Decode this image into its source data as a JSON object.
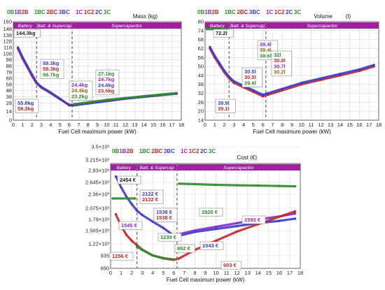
{
  "chart_data": [
    {
      "type": "line",
      "title": "Mass (kg)",
      "xlabel": "Fuel Cell maximum power (kW)",
      "ylabel": "",
      "xlim": [
        0,
        18
      ],
      "ylim": [
        0,
        160
      ],
      "xticks": [
        "0",
        "1",
        "2",
        "3",
        "4",
        "5",
        "6",
        "7",
        "8",
        "9",
        "10",
        "11",
        "12",
        "13",
        "14",
        "15",
        "16",
        "17",
        "18"
      ],
      "yticks": [
        "0",
        "14",
        "28",
        "38",
        "48",
        "58",
        "68",
        "78",
        "88",
        "98",
        "108",
        "118",
        "128",
        "138",
        "148",
        "160"
      ],
      "yticks_num": [
        0,
        14,
        28,
        38,
        48,
        58,
        68,
        78,
        88,
        98,
        108,
        118,
        128,
        138,
        148,
        160
      ],
      "zones": [
        "Battery",
        "Batt. & Supercap",
        "Supercapacitor"
      ],
      "legend": [
        {
          "text": "0B",
          "color": "#2e8b2e"
        },
        {
          "text": "1B",
          "color": "#7b2fd0"
        },
        {
          "text": "2B",
          "color": "#c62828"
        },
        {
          "text": "1BC",
          "color": "#2e8b2e"
        },
        {
          "text": "2BC",
          "color": "#c62828"
        },
        {
          "text": "3BC",
          "color": "#3b3bcc"
        },
        {
          "text": "1C",
          "color": "#b020b0"
        },
        {
          "text": "1C2",
          "color": "#c62828"
        },
        {
          "text": "2C",
          "color": "#3b3bcc"
        },
        {
          "text": "3C",
          "color": "#2e8b2e"
        }
      ],
      "series": [
        {
          "color": "#c62828",
          "x": [
            0.5,
            1,
            1.5,
            2,
            2.5,
            3,
            4,
            5,
            6,
            6.5,
            8,
            10,
            12,
            14,
            16,
            17.5
          ],
          "y": [
            116,
            100,
            86,
            72,
            60,
            53,
            44,
            34,
            25,
            25,
            28,
            31,
            35,
            38,
            41,
            44
          ]
        },
        {
          "color": "#3b3bcc",
          "x": [
            0.5,
            1,
            1.5,
            2,
            2.5,
            3,
            4,
            5,
            6,
            6.5,
            8,
            10,
            12,
            14,
            16,
            17.5
          ],
          "y": [
            118,
            102,
            88,
            74,
            61,
            54,
            45,
            35,
            24,
            24,
            27,
            31,
            35,
            38,
            41,
            43
          ]
        },
        {
          "color": "#2e8b2e",
          "x": [
            6.5,
            8,
            10,
            12,
            14,
            16,
            17.5
          ],
          "y": [
            26,
            29,
            33,
            36,
            39,
            42,
            44
          ]
        },
        {
          "color": "#2e8b2e",
          "x": [
            0.2,
            2.3
          ],
          "y": [
            145,
            145
          ]
        }
      ],
      "annotations": [
        {
          "lines": [
            "144.3kg"
          ],
          "colors": [
            "#1a1a1a"
          ]
        },
        {
          "lines": [
            "58.3kg",
            "58.3kg",
            "56.7kg"
          ],
          "colors": [
            "#3b3bcc",
            "#c62828",
            "#2e8b2e"
          ]
        },
        {
          "lines": [
            "55.8kg",
            "58.2kg"
          ],
          "colors": [
            "#3b3bcc",
            "#c62828"
          ]
        },
        {
          "lines": [
            "24.4kg",
            "24.4kg",
            "23.2kg"
          ],
          "colors": [
            "#7b2fd0",
            "#8b6508",
            "#2e8b2e"
          ]
        },
        {
          "lines": [
            "27.1kg",
            "24.7kg",
            "24.6kg",
            "23.5kg"
          ],
          "colors": [
            "#2e8b2e",
            "#b020b0",
            "#3b3bcc",
            "#c62828"
          ]
        }
      ]
    },
    {
      "type": "line",
      "title": "Volume",
      "units": "(l)",
      "xlabel": "Fuel Cell maximum power (kW)",
      "ylabel": "",
      "xlim": [
        0,
        18
      ],
      "ylim": [
        14,
        80
      ],
      "xticks": [
        "0",
        "1",
        "2",
        "3",
        "4",
        "5",
        "6",
        "7",
        "8",
        "9",
        "10",
        "11",
        "12",
        "13",
        "14",
        "15",
        "16",
        "17",
        "18"
      ],
      "yticks": [
        "14",
        "20",
        "26",
        "32",
        "38",
        "44",
        "50",
        "56",
        "62",
        "68",
        "74",
        "80"
      ],
      "yticks_num": [
        14,
        20,
        26,
        32,
        38,
        44,
        50,
        56,
        62,
        68,
        74,
        80
      ],
      "zones": [
        "Battery",
        "Batt. & Supercap",
        "Supercapacitor"
      ],
      "legend": [
        {
          "text": "0B",
          "color": "#2e8b2e"
        },
        {
          "text": "1B",
          "color": "#7b2fd0"
        },
        {
          "text": "2B",
          "color": "#c62828"
        },
        {
          "text": "1BC",
          "color": "#2e8b2e"
        },
        {
          "text": "2BC",
          "color": "#c62828"
        },
        {
          "text": "3BC",
          "color": "#3b3bcc"
        },
        {
          "text": "1C",
          "color": "#b020b0"
        },
        {
          "text": "1C2",
          "color": "#c62828"
        },
        {
          "text": "2C",
          "color": "#3b3bcc"
        },
        {
          "text": "3C",
          "color": "#2e8b2e"
        }
      ],
      "series": [
        {
          "color": "#c62828",
          "x": [
            0.5,
            1,
            1.5,
            2,
            2.5,
            3,
            4,
            5,
            6,
            6.5,
            8,
            10,
            12,
            14,
            16,
            17.5
          ],
          "y": [
            62,
            56,
            51,
            46,
            42,
            39,
            36,
            33,
            30,
            31,
            34,
            38,
            41,
            44,
            47,
            50
          ]
        },
        {
          "color": "#3b3bcc",
          "x": [
            0.5,
            1,
            1.5,
            2,
            2.5,
            3,
            4,
            5,
            6,
            6.5,
            8,
            10,
            12,
            14,
            16,
            17.5
          ],
          "y": [
            63,
            57,
            52,
            47,
            43,
            40,
            37,
            34,
            31,
            32,
            35,
            39,
            42,
            45,
            48,
            51
          ]
        },
        {
          "color": "#2e8b2e",
          "x": [
            0.2,
            2.3
          ],
          "y": [
            75,
            75
          ]
        }
      ],
      "annotations": [
        {
          "lines": [
            "72.2l"
          ],
          "colors": [
            "#1a1a1a"
          ]
        },
        {
          "lines": [
            "39.4l",
            "39.4l",
            "38.6l"
          ],
          "colors": [
            "#7b2fd0",
            "#8b6508",
            "#2e8b2e"
          ]
        },
        {
          "lines": [
            "39.9l",
            "39.1l"
          ],
          "colors": [
            "#3b3bcc",
            "#c62828"
          ]
        },
        {
          "lines": [
            "30.5l",
            "30.5l",
            "29.9l"
          ],
          "colors": [
            "#3b3bcc",
            "#c62828",
            "#2e8b2e"
          ]
        },
        {
          "lines": [
            "32l",
            "30.8l",
            "30.7l",
            "30.2l"
          ],
          "colors": [
            "#2e8b2e",
            "#c62828",
            "#7b2fd0",
            "#8b6508"
          ]
        }
      ]
    },
    {
      "type": "line",
      "title": "Cost (€)",
      "xlabel": "Fuel Cell maximum power (kW)",
      "ylabel": "",
      "xlim": [
        0,
        18
      ],
      "ylim": [
        650,
        3500
      ],
      "xticks": [
        "0",
        "1",
        "2",
        "3",
        "4",
        "5",
        "6",
        "7",
        "8",
        "9",
        "10",
        "11",
        "12",
        "13",
        "14",
        "15",
        "16",
        "17",
        "18"
      ],
      "yticks": [
        "650",
        "935",
        "1.22×10³",
        "1.505×10³",
        "1.79×10³",
        "2.075×10³",
        "2.36×10³",
        "2.645×10³",
        "2.93×10³",
        "3.215×10³",
        "3.5×10³"
      ],
      "yticks_num": [
        650,
        935,
        1220,
        1505,
        1790,
        2075,
        2360,
        2645,
        2930,
        3215,
        3500
      ],
      "zones": [
        "Battery",
        "Batt. & Supercap",
        "Supercapacitor"
      ],
      "legend": [
        {
          "text": "0B",
          "color": "#2e8b2e"
        },
        {
          "text": "1B",
          "color": "#7b2fd0"
        },
        {
          "text": "2B",
          "color": "#c62828"
        },
        {
          "text": "1BC",
          "color": "#2e8b2e"
        },
        {
          "text": "2BC",
          "color": "#c62828"
        },
        {
          "text": "3BC",
          "color": "#3b3bcc"
        },
        {
          "text": "1C",
          "color": "#b020b0"
        },
        {
          "text": "1C2",
          "color": "#c62828"
        },
        {
          "text": "2C",
          "color": "#3b3bcc"
        },
        {
          "text": "3C",
          "color": "#2e8b2e"
        }
      ],
      "series": [
        {
          "color": "#3b3bcc",
          "x": [
            0.5,
            1,
            1.5,
            2,
            2.5,
            3,
            4,
            5,
            6,
            6.5,
            8,
            10,
            12,
            14,
            16,
            17.5
          ],
          "y": [
            3150,
            2850,
            2600,
            2400,
            2220,
            2100,
            1920,
            1750,
            1540,
            1540,
            1640,
            1720,
            1800,
            1880,
            1940,
            2000
          ]
        },
        {
          "color": "#7b2fd0",
          "x": [
            6.5,
            8,
            10,
            12,
            14,
            16,
            17.5
          ],
          "y": [
            1580,
            1680,
            1780,
            1880,
            1980,
            2060,
            2140
          ]
        },
        {
          "color": "#c62828",
          "x": [
            0.5,
            1,
            1.5,
            2,
            2.5,
            3,
            4,
            5,
            6,
            6.5,
            8,
            10,
            12,
            14,
            16,
            17.5
          ],
          "y": [
            2120,
            1800,
            1560,
            1400,
            1280,
            1160,
            1000,
            920,
            880,
            920,
            1150,
            1400,
            1650,
            1850,
            2050,
            2200
          ]
        },
        {
          "color": "#2e8b2e",
          "x": [
            2.5,
            3,
            4,
            5,
            6
          ],
          "y": [
            1240,
            1150,
            1000,
            930,
            892
          ]
        },
        {
          "color": "#2e8b2e",
          "x": [
            6.5,
            8,
            10,
            12,
            14,
            16,
            17.5
          ],
          "y": [
            2950,
            2940,
            2920,
            2910,
            2900,
            2890,
            2880
          ]
        },
        {
          "color": "#2e8b2e",
          "x": [
            0.2,
            2.3
          ],
          "y": [
            2550,
            2550
          ]
        }
      ],
      "annotations": [
        {
          "lines": [
            "2454 €"
          ],
          "colors": [
            "#1a1a1a"
          ]
        },
        {
          "lines": [
            "2122 €",
            "2122 €"
          ],
          "colors": [
            "#3b3bcc",
            "#c62828"
          ]
        },
        {
          "lines": [
            "1545 €"
          ],
          "colors": [
            "#7b2fd0"
          ]
        },
        {
          "lines": [
            "1538 €",
            "1538 €"
          ],
          "colors": [
            "#3b3bcc",
            "#c62828"
          ]
        },
        {
          "lines": [
            "1239 €"
          ],
          "colors": [
            "#2e8b2e"
          ]
        },
        {
          "lines": [
            "1256 €"
          ],
          "colors": [
            "#c62828"
          ]
        },
        {
          "lines": [
            "892 €"
          ],
          "colors": [
            "#2e8b2e"
          ]
        },
        {
          "lines": [
            "2920 €"
          ],
          "colors": [
            "#2e8b2e"
          ]
        },
        {
          "lines": [
            "1593 €"
          ],
          "colors": [
            "#b020b0"
          ]
        },
        {
          "lines": [
            "1543 €"
          ],
          "colors": [
            "#3b3bcc"
          ]
        },
        {
          "lines": [
            "903 €"
          ],
          "colors": [
            "#c62828"
          ]
        }
      ]
    }
  ]
}
